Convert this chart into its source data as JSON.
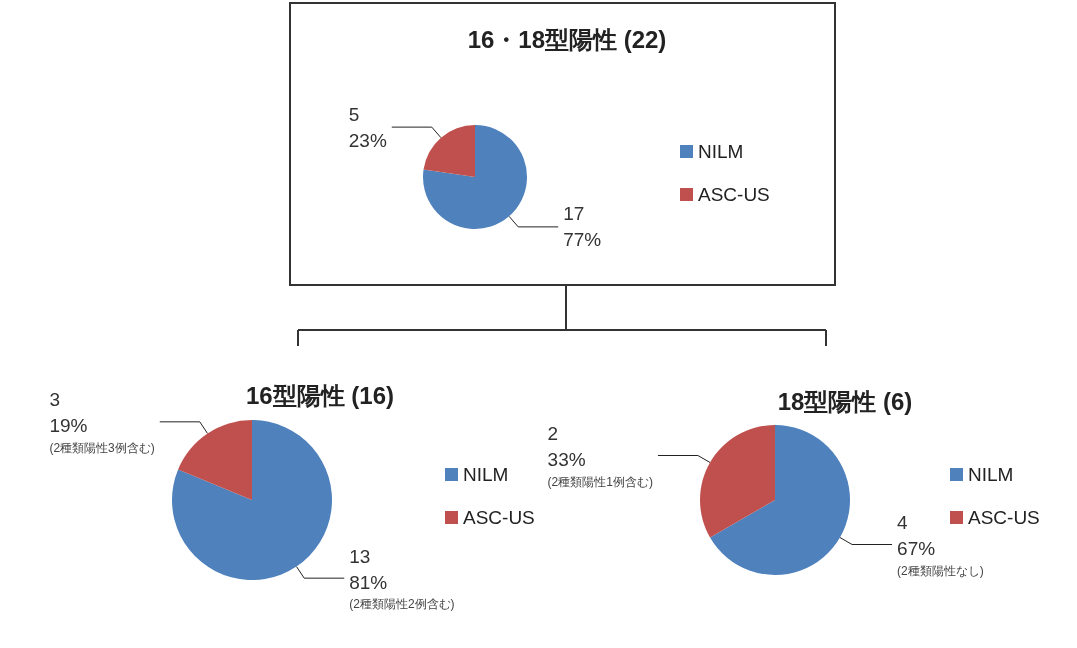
{
  "chart_data": [
    {
      "type": "pie",
      "title": "16・18型陽性 (22)",
      "categories": [
        "NILM",
        "ASC-US"
      ],
      "values": [
        17,
        5
      ],
      "colors": [
        "#4f81bd",
        "#c0504d"
      ],
      "value_labels": [
        "17\n77%",
        "5\n23%"
      ],
      "legend": "right"
    },
    {
      "type": "pie",
      "title": "16型陽性 (16)",
      "categories": [
        "NILM",
        "ASC-US"
      ],
      "values": [
        13,
        3
      ],
      "colors": [
        "#4f81bd",
        "#c0504d"
      ],
      "value_labels": [
        "13\n81%\n(2種類陽性2例含む)",
        "3\n19%\n(2種類陽性3例含む)"
      ],
      "legend": "right"
    },
    {
      "type": "pie",
      "title": "18型陽性 (6)",
      "categories": [
        "NILM",
        "ASC-US"
      ],
      "values": [
        4,
        2
      ],
      "colors": [
        "#4f81bd",
        "#c0504d"
      ],
      "value_labels": [
        "4\n67%\n(2種類陽性なし)",
        "2\n33%\n(2種類陽性1例含む)"
      ],
      "legend": "right"
    }
  ]
}
